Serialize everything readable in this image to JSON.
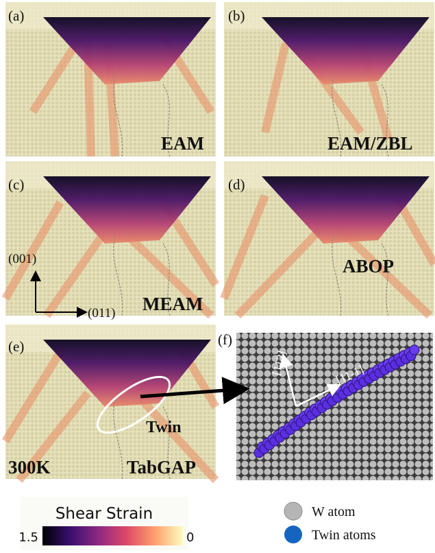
{
  "panels": [
    {
      "label": "(a)",
      "method": "EAM"
    },
    {
      "label": "(b)",
      "method": "EAM/ZBL"
    },
    {
      "label": "(c)",
      "method": "MEAM",
      "axis_y": "(001)",
      "axis_x": "(011)"
    },
    {
      "label": "(d)",
      "method": "ABOP"
    },
    {
      "label": "(e)",
      "method": "TabGAP",
      "temperature": "300K",
      "annotation": "Twin"
    },
    {
      "label": "(f)",
      "direction_1": "[112]",
      "direction_2": "[11-1]"
    }
  ],
  "colorbar": {
    "title": "Shear Strain",
    "ticks": [
      "1.5",
      "0"
    ]
  },
  "legend": {
    "items": [
      "W atom",
      "Twin atoms"
    ]
  }
}
